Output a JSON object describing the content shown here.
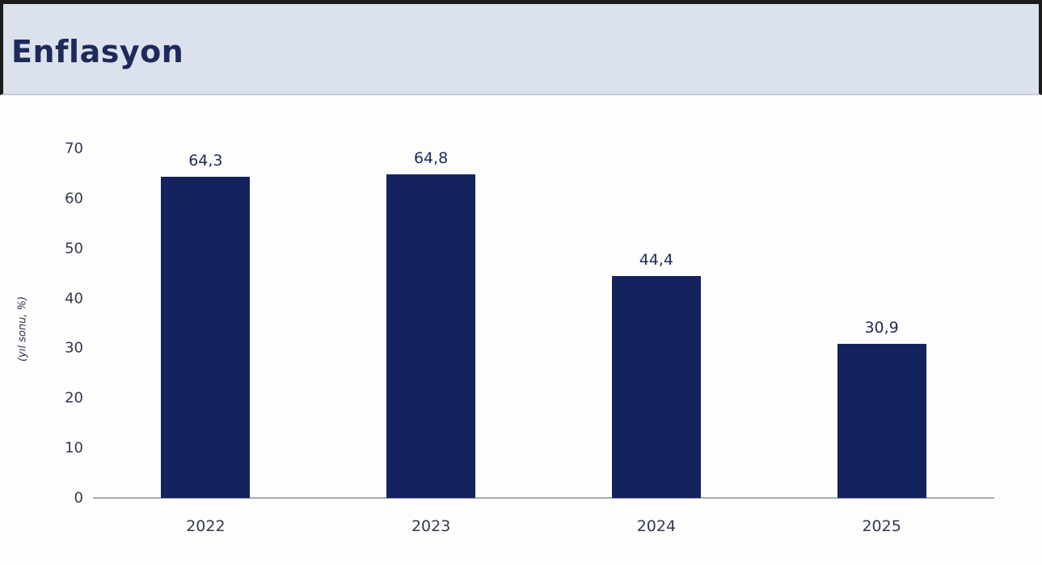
{
  "header": {
    "title": "Enflasyon"
  },
  "chart_data": {
    "type": "bar",
    "title": "Enflasyon",
    "categories": [
      "2022",
      "2023",
      "2024",
      "2025"
    ],
    "values": [
      64.3,
      64.8,
      44.4,
      30.9
    ],
    "value_labels": [
      "64,3",
      "64,8",
      "44,4",
      "30,9"
    ],
    "xlabel": "",
    "ylabel": "(yıl sonu, %)",
    "ylim": [
      0,
      70
    ],
    "yticks": [
      0,
      10,
      20,
      30,
      40,
      50,
      60,
      70
    ],
    "grid": false,
    "legend": false,
    "bar_color": "#14235e",
    "value_label_color": "#1f2b59",
    "tick_color": "#33384d",
    "axis_line_color": "#a9a9b2"
  },
  "colors": {
    "header_background": "#dce1ee",
    "header_title": "#1e2a5a",
    "edge_strip": "#1c1c1c",
    "page_background": "#fdfdfd"
  }
}
